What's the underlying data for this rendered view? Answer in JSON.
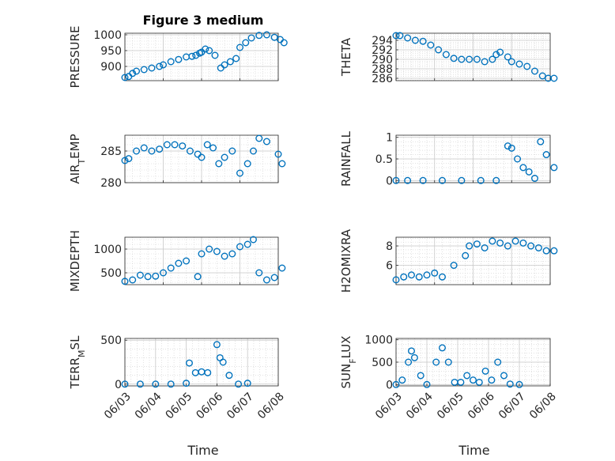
{
  "figure_title": "Figure 3 medium",
  "chart_data": [
    {
      "type": "scatter",
      "id": "pressure",
      "ylabel": "PRESSURE",
      "ylabel_sub": null,
      "ylim": [
        855,
        1005
      ],
      "yticks": [
        900,
        950,
        1000
      ],
      "x_range": [
        "06/03",
        "06/07"
      ],
      "x": [
        "06/03",
        "06/03",
        "06/03",
        "06/03",
        "06/03",
        "06/03",
        "06/03",
        "06/04",
        "06/04",
        "06/04",
        "06/04",
        "06/04",
        "06/04",
        "06/04",
        "06/05",
        "06/05",
        "06/05",
        "06/05",
        "06/05",
        "06/05",
        "06/05",
        "06/05",
        "06/06",
        "06/06",
        "06/06",
        "06/06",
        "06/06",
        "06/06",
        "06/07",
        "06/07"
      ],
      "x_frac": [
        0.0,
        0.1,
        0.2,
        0.3,
        0.5,
        0.7,
        0.9,
        0.0,
        0.2,
        0.4,
        0.6,
        0.75,
        0.85,
        0.95,
        0.0,
        0.1,
        0.2,
        0.35,
        0.5,
        0.6,
        0.75,
        0.9,
        0.0,
        0.15,
        0.3,
        0.5,
        0.7,
        0.9,
        0.05,
        0.15
      ],
      "y": [
        865,
        868,
        878,
        885,
        890,
        895,
        900,
        905,
        915,
        922,
        930,
        932,
        935,
        942,
        945,
        955,
        950,
        935,
        895,
        905,
        915,
        925,
        960,
        975,
        990,
        998,
        1000,
        992,
        985,
        975
      ]
    },
    {
      "type": "scatter",
      "id": "theta",
      "ylabel": "THETA",
      "ylabel_sub": null,
      "ylim": [
        285.5,
        295.5
      ],
      "yticks": [
        286,
        288,
        290,
        292,
        294
      ],
      "x_range": [
        "06/03",
        "06/07"
      ],
      "x": [
        "06/03",
        "06/03",
        "06/03",
        "06/03",
        "06/03",
        "06/03",
        "06/04",
        "06/04",
        "06/04",
        "06/04",
        "06/04",
        "06/05",
        "06/05",
        "06/05",
        "06/05",
        "06/05",
        "06/05",
        "06/06",
        "06/06",
        "06/06",
        "06/06",
        "06/06",
        "06/06",
        "06/07"
      ],
      "x_frac": [
        0.0,
        0.1,
        0.3,
        0.5,
        0.7,
        0.9,
        0.1,
        0.3,
        0.5,
        0.7,
        0.9,
        0.1,
        0.3,
        0.5,
        0.6,
        0.7,
        0.9,
        0.0,
        0.2,
        0.4,
        0.6,
        0.8,
        0.95,
        0.1
      ],
      "y": [
        295,
        295,
        294.5,
        294,
        293.8,
        293,
        292,
        291,
        290.2,
        290,
        290,
        290,
        289.5,
        290,
        291,
        291.5,
        290.5,
        289.5,
        289,
        288.5,
        287.5,
        286.5,
        286,
        286
      ]
    },
    {
      "type": "scatter",
      "id": "air_temp",
      "ylabel": "AIR",
      "ylabel_sub": "T",
      "ylabel_suffix": "EMP",
      "ylim": [
        280,
        287.5
      ],
      "yticks": [
        280,
        285
      ],
      "x_range": [
        "06/03",
        "06/07"
      ],
      "x": [
        "06/03",
        "06/03",
        "06/03",
        "06/03",
        "06/03",
        "06/03",
        "06/04",
        "06/04",
        "06/04",
        "06/04",
        "06/04",
        "06/05",
        "06/05",
        "06/05",
        "06/05",
        "06/05",
        "06/05",
        "06/06",
        "06/06",
        "06/06",
        "06/06",
        "06/06",
        "06/07",
        "06/07"
      ],
      "x_frac": [
        0.0,
        0.1,
        0.3,
        0.5,
        0.7,
        0.9,
        0.1,
        0.3,
        0.5,
        0.7,
        0.9,
        0.0,
        0.15,
        0.3,
        0.45,
        0.6,
        0.8,
        0.0,
        0.2,
        0.35,
        0.5,
        0.7,
        0.0,
        0.1
      ],
      "y": [
        283.5,
        283.8,
        285,
        285.5,
        285,
        285.3,
        286,
        286,
        285.8,
        285,
        284.5,
        284,
        286,
        285.5,
        283,
        284,
        285,
        281.5,
        283,
        285,
        287,
        286.5,
        284.5,
        283
      ]
    },
    {
      "type": "scatter",
      "id": "rainfall",
      "ylabel": "RAINFALL",
      "ylabel_sub": null,
      "ylim": [
        -0.05,
        1.05
      ],
      "yticks": [
        0,
        0.5,
        1
      ],
      "x_range": [
        "06/03",
        "06/07"
      ],
      "x": [
        "06/03",
        "06/03",
        "06/03",
        "06/04",
        "06/04",
        "06/05",
        "06/05",
        "06/05",
        "06/06",
        "06/06",
        "06/06",
        "06/06",
        "06/06",
        "06/06",
        "06/06",
        "06/07"
      ],
      "x_frac": [
        0.0,
        0.3,
        0.7,
        0.2,
        0.7,
        0.2,
        0.6,
        0.9,
        0.0,
        0.15,
        0.3,
        0.45,
        0.6,
        0.75,
        0.9,
        0.1
      ],
      "y": [
        0,
        0,
        0,
        0,
        0,
        0,
        0,
        0.8,
        0.75,
        0.5,
        0.3,
        0.2,
        0.05,
        0.9,
        0.6,
        0.3
      ]
    },
    {
      "type": "scatter",
      "id": "mixdepth",
      "ylabel": "MIXDEPTH",
      "ylabel_sub": null,
      "ylim": [
        250,
        1250
      ],
      "yticks": [
        500,
        1000
      ],
      "x_range": [
        "06/03",
        "06/07"
      ],
      "x": [
        "06/03",
        "06/03",
        "06/03",
        "06/03",
        "06/03",
        "06/04",
        "06/04",
        "06/04",
        "06/04",
        "06/04",
        "06/05",
        "06/05",
        "06/05",
        "06/05",
        "06/05",
        "06/06",
        "06/06",
        "06/06",
        "06/06",
        "06/06",
        "06/06",
        "06/07"
      ],
      "x_frac": [
        0.0,
        0.2,
        0.4,
        0.6,
        0.8,
        0.0,
        0.2,
        0.4,
        0.6,
        0.9,
        0.0,
        0.2,
        0.4,
        0.6,
        0.8,
        0.0,
        0.2,
        0.35,
        0.5,
        0.7,
        0.9,
        0.1
      ],
      "y": [
        320,
        350,
        450,
        420,
        430,
        500,
        600,
        700,
        750,
        420,
        900,
        1000,
        950,
        850,
        900,
        1050,
        1100,
        1200,
        500,
        350,
        400,
        600
      ]
    },
    {
      "type": "scatter",
      "id": "h2omixra",
      "ylabel": "H2OMIXRA",
      "ylabel_sub": null,
      "ylim": [
        4,
        8.9
      ],
      "yticks": [
        6,
        8
      ],
      "x_range": [
        "06/03",
        "06/07"
      ],
      "x": [
        "06/03",
        "06/03",
        "06/03",
        "06/03",
        "06/03",
        "06/04",
        "06/04",
        "06/04",
        "06/04",
        "06/04",
        "06/05",
        "06/05",
        "06/05",
        "06/05",
        "06/05",
        "06/06",
        "06/06",
        "06/06",
        "06/06",
        "06/06",
        "06/07"
      ],
      "x_frac": [
        0.0,
        0.2,
        0.4,
        0.6,
        0.8,
        0.0,
        0.2,
        0.5,
        0.8,
        0.9,
        0.1,
        0.3,
        0.5,
        0.7,
        0.9,
        0.1,
        0.3,
        0.5,
        0.7,
        0.9,
        0.1
      ],
      "y": [
        4.5,
        4.8,
        5,
        4.8,
        5,
        5.2,
        4.8,
        6,
        7,
        8,
        8.2,
        7.8,
        8.5,
        8.3,
        8,
        8.5,
        8.3,
        8,
        7.8,
        7.5,
        7.5
      ]
    },
    {
      "type": "scatter",
      "id": "terr_msl",
      "ylabel": "TERR",
      "ylabel_sub": "M",
      "ylabel_suffix": "SL",
      "ylim": [
        -20,
        520
      ],
      "yticks": [
        0,
        500
      ],
      "x_range": [
        "06/03",
        "06/08"
      ],
      "x": [
        "06/03",
        "06/03",
        "06/04",
        "06/04",
        "06/05",
        "06/05",
        "06/05",
        "06/05",
        "06/05",
        "06/06",
        "06/06",
        "06/06",
        "06/06",
        "06/06",
        "06/07"
      ],
      "x_frac": [
        0.0,
        0.5,
        0.0,
        0.5,
        0.0,
        0.1,
        0.3,
        0.5,
        0.7,
        0.0,
        0.1,
        0.2,
        0.4,
        0.7,
        0.0
      ],
      "y": [
        0,
        0,
        0,
        0,
        10,
        240,
        130,
        140,
        130,
        450,
        300,
        250,
        100,
        0,
        10
      ]
    },
    {
      "type": "scatter",
      "id": "sun_flux",
      "ylabel": "SUN",
      "ylabel_sub": "F",
      "ylabel_suffix": "LUX",
      "ylim": [
        -30,
        1030
      ],
      "yticks": [
        0,
        500,
        1000
      ],
      "x_range": [
        "06/03",
        "06/08"
      ],
      "x": [
        "06/03",
        "06/03",
        "06/03",
        "06/03",
        "06/03",
        "06/03",
        "06/04",
        "06/04",
        "06/04",
        "06/04",
        "06/04",
        "06/05",
        "06/05",
        "06/05",
        "06/05",
        "06/05",
        "06/06",
        "06/06",
        "06/06",
        "06/06",
        "06/07"
      ],
      "x_frac": [
        0.0,
        0.2,
        0.4,
        0.5,
        0.6,
        0.8,
        0.0,
        0.3,
        0.5,
        0.7,
        0.9,
        0.1,
        0.3,
        0.5,
        0.7,
        0.9,
        0.1,
        0.3,
        0.5,
        0.7,
        0.0
      ],
      "y": [
        0,
        100,
        500,
        750,
        600,
        200,
        0,
        500,
        820,
        500,
        50,
        50,
        200,
        100,
        50,
        300,
        100,
        500,
        200,
        10,
        0
      ]
    }
  ],
  "x_tick_labels": [
    "06/03",
    "06/04",
    "06/05",
    "06/06",
    "06/07",
    "06/08"
  ],
  "xlabel": "Time",
  "marker_color": "#0072bd"
}
